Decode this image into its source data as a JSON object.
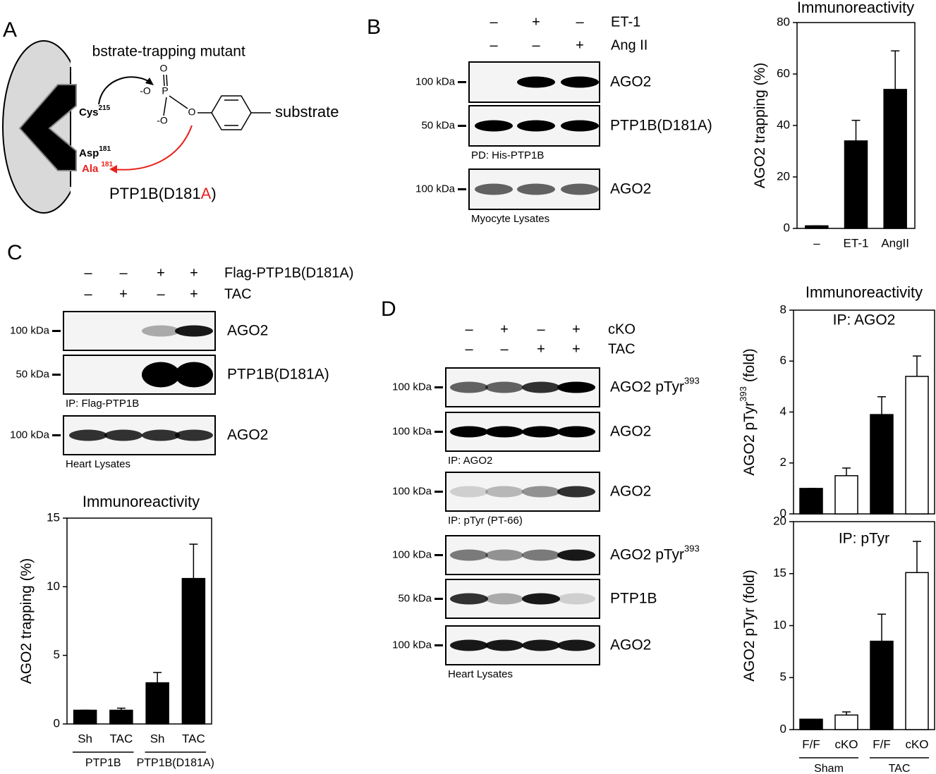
{
  "panel_a": {
    "letter": "A",
    "title": "Substrate-trapping mutant",
    "cys": "Cys",
    "cys_sup": "215",
    "asp": "Asp",
    "asp_sup": "181",
    "ala": "Ala",
    "ala_sup": "181",
    "atoms": [
      "O",
      "-O",
      "P",
      "-O",
      "O"
    ],
    "substrate": "substrate",
    "mutant": "PTP1B(D181",
    "mutant_red": "A",
    "mutant_end": ")"
  },
  "panel_b": {
    "letter": "B",
    "treatments": [
      {
        "label": "ET-1",
        "signs": [
          "–",
          "+",
          "–"
        ]
      },
      {
        "label": "Ang II",
        "signs": [
          "–",
          "–",
          "+"
        ]
      }
    ],
    "blots": [
      {
        "kda": "100 kDa",
        "protein": "AGO2"
      },
      {
        "kda": "50 kDa",
        "protein": "PTP1B(D181A)",
        "caption": "PD: His-PTP1B"
      },
      {
        "kda": "100 kDa",
        "protein": "AGO2",
        "caption": "Myocyte Lysates"
      }
    ]
  },
  "panel_c": {
    "letter": "C",
    "treatments": [
      {
        "label": "Flag-PTP1B(D181A)",
        "signs": [
          "–",
          "–",
          "+",
          "+"
        ]
      },
      {
        "label": "TAC",
        "signs": [
          "–",
          "+",
          "–",
          "+"
        ]
      }
    ],
    "blots": [
      {
        "kda": "100 kDa",
        "protein": "AGO2"
      },
      {
        "kda": "50 kDa",
        "protein": "PTP1B(D181A)",
        "caption": "IP: Flag-PTP1B"
      },
      {
        "kda": "100 kDa",
        "protein": "AGO2",
        "caption": "Heart Lysates"
      }
    ]
  },
  "panel_d": {
    "letter": "D",
    "treatments": [
      {
        "label": "cKO",
        "signs": [
          "–",
          "+",
          "–",
          "+"
        ]
      },
      {
        "label": "TAC",
        "signs": [
          "–",
          "–",
          "+",
          "+"
        ]
      }
    ],
    "blots": [
      {
        "kda": "100 kDa",
        "protein": "AGO2 pTyr",
        "protein_sup": "393"
      },
      {
        "kda": "100 kDa",
        "protein": "AGO2",
        "caption": "IP: AGO2"
      },
      {
        "kda": "100 kDa",
        "protein": "AGO2",
        "caption": "IP: pTyr (PT-66)"
      },
      {
        "kda": "100 kDa",
        "protein": "AGO2 pTyr",
        "protein_sup": "393"
      },
      {
        "kda": "50 kDa",
        "protein": "PTP1B"
      },
      {
        "kda": "100 kDa",
        "protein": "AGO2",
        "caption": "Heart Lysates"
      }
    ]
  },
  "chart_data": [
    {
      "type": "bar",
      "title": "Immunoreactivity",
      "ylabel": "AGO2 trapping (%)",
      "categories": [
        "–",
        "ET-1",
        "AngII"
      ],
      "values": [
        1,
        34,
        54
      ],
      "errors": [
        0,
        8,
        15
      ],
      "colors": [
        "#000000",
        "#000000",
        "#000000"
      ],
      "ylim": [
        0,
        80
      ],
      "yticks": [
        0,
        20,
        40,
        60,
        80
      ]
    },
    {
      "type": "bar",
      "title": "Immunoreactivity",
      "ylabel": "AGO2 trapping (%)",
      "categories": [
        "Sh",
        "TAC",
        "Sh",
        "TAC"
      ],
      "groups": [
        "PTP1B",
        "PTP1B(D181A)"
      ],
      "values": [
        1,
        1,
        3,
        10.6
      ],
      "errors": [
        0,
        0.15,
        0.75,
        2.5
      ],
      "colors": [
        "#000000",
        "#000000",
        "#000000",
        "#000000"
      ],
      "ylim": [
        0,
        15
      ],
      "yticks": [
        0,
        5,
        10,
        15
      ]
    },
    {
      "type": "bar",
      "title": "Immunoreactivity",
      "subtitle": "IP: AGO2",
      "ylabel": "AGO2 pTyr",
      "ylabel_sup": "393",
      "ylabel_end": " (fold)",
      "values": [
        1,
        1.5,
        3.9,
        5.4
      ],
      "errors": [
        0,
        0.3,
        0.7,
        0.8
      ],
      "colors": [
        "#000000",
        "#ffffff",
        "#000000",
        "#ffffff"
      ],
      "ylim": [
        0,
        8
      ],
      "yticks": [
        0,
        2,
        4,
        6,
        8
      ]
    },
    {
      "type": "bar",
      "subtitle": "IP: pTyr",
      "ylabel": "AGO2 pTyr (fold)",
      "categories": [
        "F/F",
        "cKO",
        "F/F",
        "cKO"
      ],
      "groups": [
        "Sham",
        "TAC"
      ],
      "values": [
        1,
        1.4,
        8.5,
        15.1
      ],
      "errors": [
        0,
        0.3,
        2.6,
        3
      ],
      "colors": [
        "#000000",
        "#ffffff",
        "#000000",
        "#ffffff"
      ],
      "ylim": [
        0,
        20
      ],
      "yticks": [
        0,
        5,
        10,
        15,
        20
      ]
    }
  ]
}
